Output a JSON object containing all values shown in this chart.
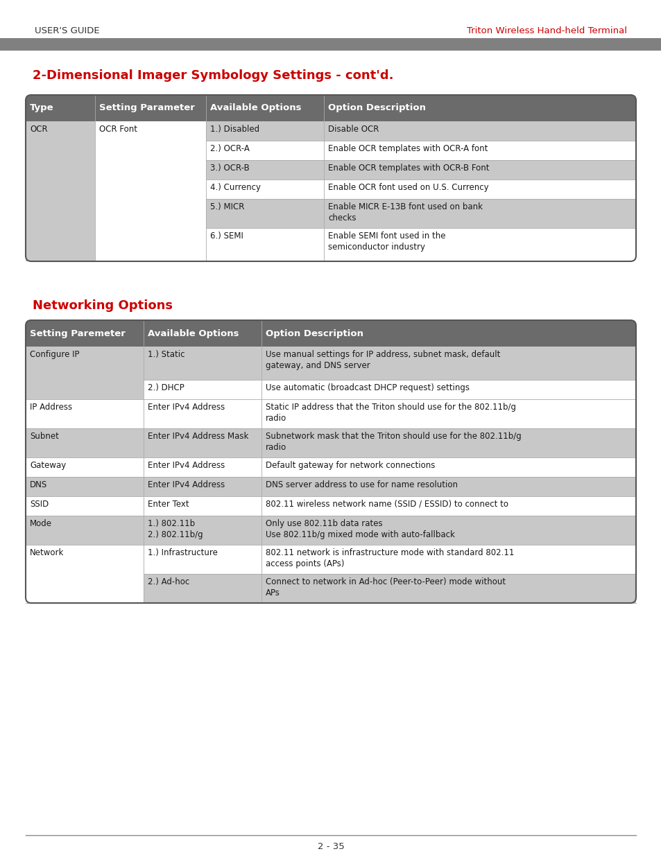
{
  "page_header_left": "USER'S GUIDE",
  "page_header_right": "Triton Wireless Hand-held Terminal",
  "title1": "2-Dimensional Imager Symbology Settings - cont'd.",
  "title2": "Networking Options",
  "title_color": "#cc0000",
  "page_footer": "2 - 35",
  "header_bg": "#6b6b6b",
  "header_fg": "#ffffff",
  "gray_light": "#c8c8c8",
  "white": "#ffffff",
  "border_color": "#555555",
  "divider_color": "#aaaaaa",
  "text_color": "#1a1a1a",
  "background_color": "#ffffff",
  "table1_headers": [
    "Type",
    "Setting Parameter",
    "Available Options",
    "Option Description"
  ],
  "table1_rows": [
    [
      "1.) Disabled",
      "Disable OCR"
    ],
    [
      "2.) OCR-A",
      "Enable OCR templates with OCR-A font"
    ],
    [
      "3.) OCR-B",
      "Enable OCR templates with OCR-B Font"
    ],
    [
      "4.) Currency",
      "Enable OCR font used on U.S. Currency"
    ],
    [
      "5.) MICR",
      "Enable MICR E-13B font used on bank\nchecks"
    ],
    [
      "6.) SEMI",
      "Enable SEMI font used in the\nsemiconductor industry"
    ]
  ],
  "table2_headers": [
    "Setting Paremeter",
    "Available Options",
    "Option Description"
  ],
  "table2_rows": [
    {
      "setting": "Configure IP",
      "sub": [
        [
          "1.) Static",
          "Use manual settings for IP address, subnet mask, default\ngateway, and DNS server"
        ],
        [
          "2.) DHCP",
          "Use automatic (broadcast DHCP request) settings"
        ]
      ]
    },
    {
      "setting": "IP Address",
      "sub": [
        [
          "Enter IPv4 Address",
          "Static IP address that the Triton should use for the 802.11b/g\nradio"
        ]
      ]
    },
    {
      "setting": "Subnet",
      "sub": [
        [
          "Enter IPv4 Address Mask",
          "Subnetwork mask that the Triton should use for the 802.11b/g\nradio"
        ]
      ]
    },
    {
      "setting": "Gateway",
      "sub": [
        [
          "Enter IPv4 Address",
          "Default gateway for network connections"
        ]
      ]
    },
    {
      "setting": "DNS",
      "sub": [
        [
          "Enter IPv4 Address",
          "DNS server address to use for name resolution"
        ]
      ]
    },
    {
      "setting": "SSID",
      "sub": [
        [
          "Enter Text",
          "802.11 wireless network name (SSID / ESSID) to connect to"
        ]
      ]
    },
    {
      "setting": "Mode",
      "sub": [
        [
          "1.) 802.11b\n2.) 802.11b/g",
          "Only use 802.11b data rates\nUse 802.11b/g mixed mode with auto-fallback"
        ]
      ]
    },
    {
      "setting": "Network",
      "sub": [
        [
          "1.) Infrastructure",
          "802.11 network is infrastructure mode with standard 802.11\naccess points (APs)"
        ],
        [
          "2.) Ad-hoc",
          "Connect to network in Ad-hoc (Peer-to-Peer) mode without\nAPs"
        ]
      ]
    }
  ]
}
